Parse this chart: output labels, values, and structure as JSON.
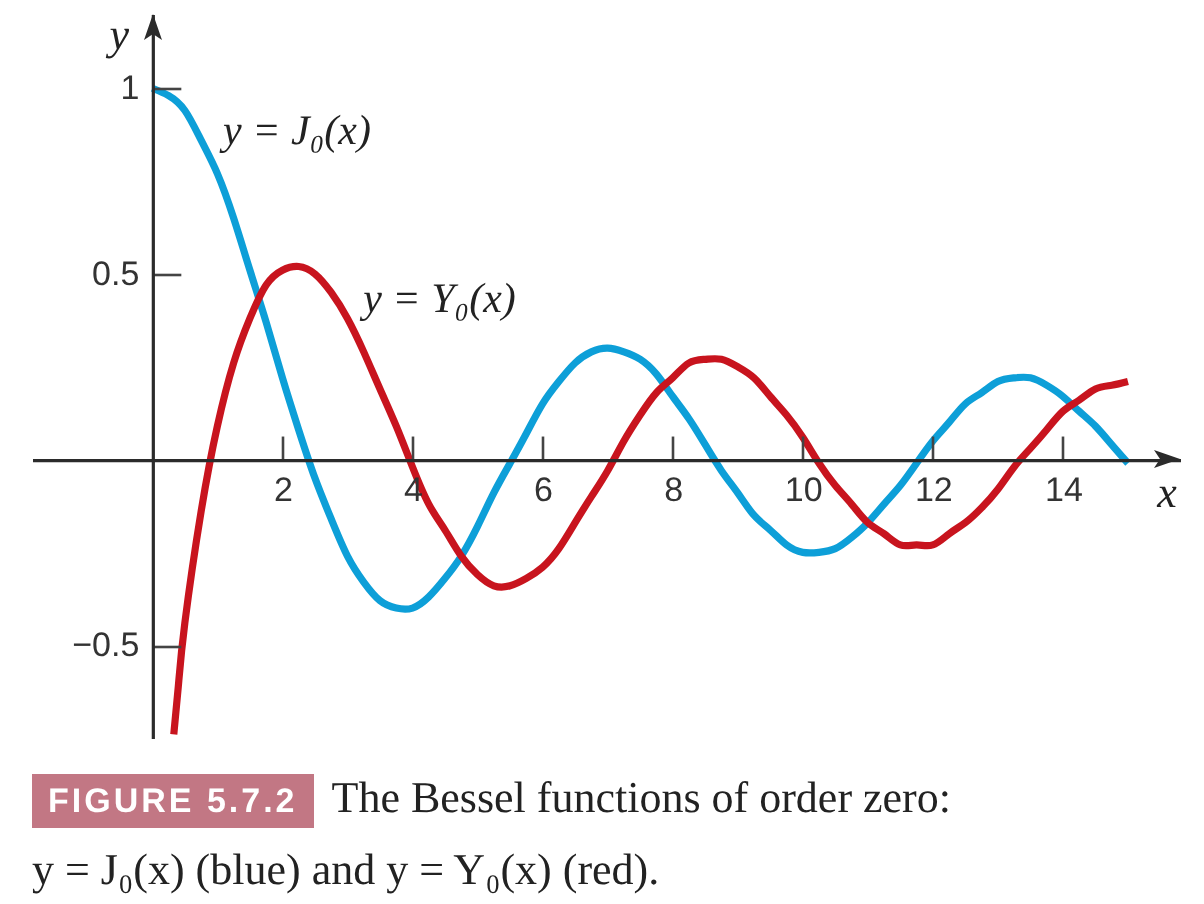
{
  "chart_data": {
    "type": "line",
    "xlabel": "x",
    "ylabel": "y",
    "xlim": [
      -1.85,
      15.8
    ],
    "ylim": [
      -0.75,
      1.2
    ],
    "xticks": [
      2,
      4,
      6,
      8,
      10,
      12,
      14
    ],
    "yticks": [
      -0.5,
      0.5,
      1
    ],
    "grid": false,
    "series": [
      {
        "name": "y = J₀(x)",
        "color": "#0d9fd8",
        "x": [
          0,
          0.25,
          0.5,
          0.75,
          1,
          1.25,
          1.5,
          1.75,
          2,
          2.25,
          2.5,
          2.75,
          3,
          3.25,
          3.5,
          3.75,
          4,
          4.25,
          4.5,
          4.75,
          5,
          5.25,
          5.5,
          5.75,
          6,
          6.25,
          6.5,
          6.75,
          7,
          7.25,
          7.5,
          7.75,
          8,
          8.25,
          8.5,
          8.75,
          9,
          9.25,
          9.5,
          9.75,
          10,
          10.25,
          10.5,
          10.75,
          11,
          11.25,
          11.5,
          11.75,
          12,
          12.25,
          12.5,
          12.75,
          13,
          13.25,
          13.5,
          13.75,
          14,
          14.25,
          14.5,
          14.75,
          15
        ],
        "values": [
          1,
          0.98,
          0.94,
          0.86,
          0.77,
          0.65,
          0.51,
          0.37,
          0.22,
          0.08,
          -0.05,
          -0.16,
          -0.26,
          -0.33,
          -0.38,
          -0.4,
          -0.4,
          -0.37,
          -0.32,
          -0.26,
          -0.18,
          -0.09,
          -0.01,
          0.07,
          0.15,
          0.21,
          0.26,
          0.29,
          0.3,
          0.29,
          0.27,
          0.23,
          0.17,
          0.11,
          0.04,
          -0.03,
          -0.09,
          -0.15,
          -0.19,
          -0.23,
          -0.25,
          -0.25,
          -0.24,
          -0.21,
          -0.17,
          -0.12,
          -0.07,
          -0.01,
          0.05,
          0.1,
          0.15,
          0.18,
          0.21,
          0.22,
          0.22,
          0.2,
          0.17,
          0.13,
          0.09,
          0.04,
          -0.01
        ]
      },
      {
        "name": "y = Y₀(x)",
        "color": "#c8141e",
        "x": [
          0.33,
          0.4,
          0.5,
          0.75,
          1,
          1.25,
          1.5,
          1.75,
          2,
          2.25,
          2.5,
          2.75,
          3,
          3.25,
          3.5,
          3.75,
          4,
          4.25,
          4.5,
          4.75,
          5,
          5.25,
          5.5,
          5.75,
          6,
          6.25,
          6.5,
          6.75,
          7,
          7.25,
          7.5,
          7.75,
          8,
          8.25,
          8.5,
          8.75,
          9,
          9.25,
          9.5,
          9.75,
          10,
          10.25,
          10.5,
          10.75,
          11,
          11.25,
          11.5,
          11.75,
          12,
          12.25,
          12.5,
          12.75,
          13,
          13.25,
          13.5,
          13.75,
          14,
          14.25,
          14.5,
          14.75,
          15
        ],
        "values": [
          -0.74,
          -0.61,
          -0.44,
          -0.14,
          0.09,
          0.26,
          0.38,
          0.47,
          0.51,
          0.52,
          0.5,
          0.45,
          0.38,
          0.29,
          0.19,
          0.09,
          -0.02,
          -0.12,
          -0.19,
          -0.26,
          -0.31,
          -0.34,
          -0.34,
          -0.32,
          -0.29,
          -0.24,
          -0.17,
          -0.1,
          -0.03,
          0.05,
          0.12,
          0.18,
          0.22,
          0.26,
          0.27,
          0.27,
          0.25,
          0.22,
          0.17,
          0.12,
          0.06,
          -0.01,
          -0.07,
          -0.12,
          -0.17,
          -0.2,
          -0.23,
          -0.23,
          -0.23,
          -0.2,
          -0.17,
          -0.13,
          -0.08,
          -0.02,
          0.03,
          0.08,
          0.13,
          0.16,
          0.19,
          0.2,
          0.21
        ]
      }
    ],
    "annotations": [
      "FIGURE 5.7.2",
      "The Bessel functions of order zero:",
      "y = J₀(x) (blue) and y = Y₀(x) (red)."
    ]
  }
}
